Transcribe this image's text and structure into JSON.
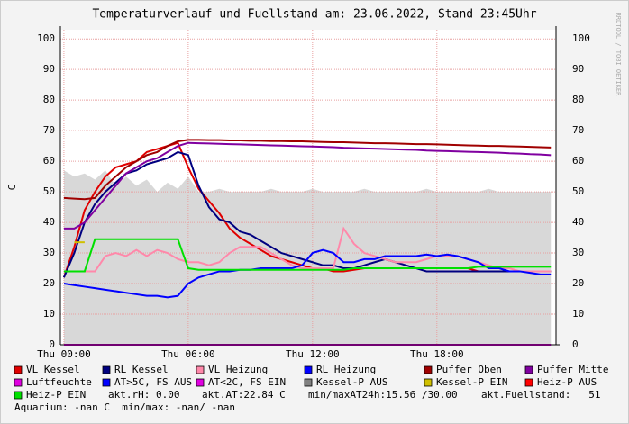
{
  "chart_data": {
    "type": "line",
    "title": "Temperaturverlauf und Fuellstand am: 23.06.2022, Stand 23:45Uhr",
    "y_label": "C",
    "watermark": "RRDTOOL / TOBI OETIKER",
    "xlim": [
      -0.17,
      23.75
    ],
    "xticks": [
      {
        "value": 0,
        "label": "Thu 00:00"
      },
      {
        "value": 6,
        "label": "Thu 06:00"
      },
      {
        "value": 12,
        "label": "Thu 12:00"
      },
      {
        "value": 18,
        "label": "Thu 18:00"
      }
    ],
    "ylim": [
      0,
      103
    ],
    "yticks": [
      0,
      10,
      20,
      30,
      40,
      50,
      60,
      70,
      80,
      90,
      100
    ],
    "grid": true,
    "x": [
      0,
      0.5,
      1,
      1.5,
      2,
      2.5,
      3,
      3.5,
      4,
      4.5,
      5,
      5.5,
      6,
      6.5,
      7,
      7.5,
      8,
      8.5,
      9,
      9.5,
      10,
      10.5,
      11,
      11.5,
      12,
      12.5,
      13,
      13.5,
      14,
      14.5,
      15,
      15.5,
      16,
      16.5,
      17,
      17.5,
      18,
      18.5,
      19,
      19.5,
      20,
      20.5,
      21,
      21.5,
      22,
      22.5,
      23,
      23.5
    ],
    "series": [
      {
        "name": "VL Kessel",
        "color": "#e00000",
        "values": [
          22,
          32,
          44,
          50,
          55,
          58,
          59,
          60,
          63,
          64,
          65,
          66,
          58,
          51,
          47,
          43,
          38,
          35,
          33,
          31,
          29,
          28,
          27,
          26,
          25,
          25,
          24,
          24,
          24.5,
          25,
          25,
          25,
          25,
          25,
          25,
          25,
          25,
          25,
          25,
          25,
          24,
          24,
          24,
          24,
          24,
          24,
          24,
          24
        ]
      },
      {
        "name": "RL Kessel",
        "color": "#000080",
        "values": [
          22,
          30,
          40,
          46,
          50,
          53,
          56,
          57,
          59,
          60,
          61,
          63,
          62,
          52,
          45,
          41,
          40,
          37,
          36,
          34,
          32,
          30,
          29,
          28,
          27,
          26,
          26,
          25,
          25,
          26,
          27,
          28,
          27,
          26,
          25,
          24,
          24,
          24,
          24,
          24,
          24,
          24,
          24,
          24,
          24,
          24,
          24,
          24
        ]
      },
      {
        "name": "VL Heizung",
        "color": "#ff88aa",
        "values": [
          24,
          24,
          24,
          24,
          29,
          30,
          29,
          31,
          29,
          31,
          30,
          28,
          27,
          27,
          26,
          27,
          30,
          32,
          32,
          32,
          30,
          28,
          26,
          25,
          25,
          25,
          25,
          38,
          33,
          30,
          29,
          28,
          27,
          27,
          27,
          28,
          29,
          29,
          29,
          28,
          27,
          26,
          25,
          25,
          24,
          24,
          24,
          24
        ]
      },
      {
        "name": "RL Heizung",
        "color": "#0000ff",
        "values": [
          20,
          19.5,
          19,
          18.5,
          18,
          17.5,
          17,
          16.5,
          16,
          16,
          15.5,
          16,
          20,
          22,
          23,
          24,
          24,
          24.5,
          24.5,
          25,
          25,
          25,
          25,
          26,
          30,
          31,
          30,
          27,
          27,
          28,
          28,
          29,
          29,
          29,
          29,
          29.5,
          29,
          29.5,
          29,
          28,
          27,
          25,
          25,
          24,
          24,
          23.5,
          23,
          23
        ]
      },
      {
        "name": "Puffer Oben",
        "color": "#a00000",
        "values": [
          48,
          47.8,
          47.6,
          48,
          52,
          55,
          58,
          60,
          62,
          63,
          65,
          66.5,
          67,
          67,
          66.9,
          66.9,
          66.8,
          66.8,
          66.7,
          66.7,
          66.6,
          66.6,
          66.5,
          66.5,
          66.4,
          66.3,
          66.2,
          66.2,
          66.1,
          66,
          65.9,
          65.9,
          65.8,
          65.7,
          65.6,
          65.6,
          65.5,
          65.4,
          65.3,
          65.2,
          65.1,
          65,
          65,
          64.9,
          64.8,
          64.7,
          64.6,
          64.5
        ]
      },
      {
        "name": "Puffer Mitte",
        "color": "#8000a0",
        "values": [
          38,
          38,
          40,
          44,
          48,
          52,
          56,
          58,
          60,
          61,
          63,
          65,
          66,
          65.9,
          65.8,
          65.7,
          65.6,
          65.5,
          65.4,
          65.3,
          65.2,
          65.1,
          65,
          64.9,
          64.8,
          64.7,
          64.6,
          64.4,
          64.3,
          64.2,
          64.1,
          64,
          63.9,
          63.8,
          63.7,
          63.5,
          63.4,
          63.3,
          63.2,
          63.1,
          63,
          62.9,
          62.8,
          62.6,
          62.5,
          62.3,
          62.2,
          62
        ]
      },
      {
        "name": "Luftfeuchte",
        "color": "#e000e0",
        "values": [
          0,
          0,
          0,
          0,
          0,
          0,
          0,
          0,
          0,
          0,
          0,
          0,
          0,
          0,
          0,
          0,
          0,
          0,
          0,
          0,
          0,
          0,
          0,
          0,
          0,
          0,
          0,
          0,
          0,
          0,
          0,
          0,
          0,
          0,
          0,
          0,
          0,
          0,
          0,
          0,
          0,
          0,
          0,
          0,
          0,
          0,
          0,
          0
        ]
      },
      {
        "name": "AT>5C, FS AUS",
        "color": "#0000ff",
        "values": [
          null,
          null,
          null,
          null,
          null,
          null,
          null,
          null,
          null,
          null,
          null,
          null,
          null,
          null,
          null,
          null,
          null,
          null,
          null,
          null,
          null,
          null,
          null,
          null,
          null,
          null,
          null,
          null,
          null,
          null,
          null,
          null,
          null,
          null,
          null,
          null,
          null,
          null,
          null,
          null,
          null,
          null,
          null,
          null,
          null,
          null,
          null,
          null
        ]
      },
      {
        "name": "AT<2C, FS EIN",
        "color": "#e000e0",
        "values": [
          null,
          null,
          null,
          null,
          null,
          null,
          null,
          null,
          null,
          null,
          null,
          null,
          null,
          null,
          null,
          null,
          null,
          null,
          null,
          null,
          null,
          null,
          null,
          null,
          null,
          null,
          null,
          null,
          null,
          null,
          null,
          null,
          null,
          null,
          null,
          null,
          null,
          null,
          null,
          null,
          null,
          null,
          null,
          null,
          null,
          null,
          null,
          null
        ]
      },
      {
        "name": "Kessel-P AUS",
        "color": "#808080",
        "style": "area",
        "area_color": "#d8d8d8",
        "values": [
          57,
          55,
          56,
          54,
          57,
          52,
          55,
          52,
          54,
          50,
          53,
          51,
          55,
          50,
          50,
          51,
          50,
          50,
          50,
          50,
          51,
          50,
          50,
          50,
          51,
          50,
          50,
          50,
          50,
          51,
          50,
          50,
          50,
          50,
          50,
          51,
          50,
          50,
          50,
          50,
          50,
          51,
          50,
          50,
          50,
          50,
          50,
          50
        ]
      },
      {
        "name": "Kessel-P EIN",
        "color": "#d0c000",
        "values": [
          null,
          33.5,
          33.5,
          null,
          null,
          null,
          null,
          null,
          null,
          null,
          null,
          null,
          null,
          null,
          null,
          null,
          null,
          null,
          null,
          null,
          null,
          null,
          null,
          null,
          null,
          null,
          null,
          null,
          null,
          null,
          null,
          null,
          null,
          null,
          null,
          null,
          null,
          null,
          null,
          null,
          null,
          null,
          null,
          null,
          null,
          null,
          null,
          null
        ]
      },
      {
        "name": "Heiz-P AUS",
        "color": "#ff0000",
        "values": [
          null,
          null,
          null,
          null,
          null,
          null,
          null,
          null,
          null,
          null,
          null,
          null,
          null,
          null,
          null,
          null,
          null,
          null,
          null,
          null,
          null,
          null,
          null,
          null,
          null,
          null,
          null,
          null,
          null,
          null,
          null,
          null,
          null,
          null,
          null,
          null,
          null,
          null,
          null,
          null,
          null,
          null,
          null,
          null,
          null,
          null,
          null,
          null
        ]
      },
      {
        "name": "Heiz-P EIN",
        "color": "#00e000",
        "values": [
          24,
          24,
          24,
          34.5,
          34.5,
          34.5,
          34.5,
          34.5,
          34.5,
          34.5,
          34.5,
          34.5,
          25,
          24.5,
          24.5,
          24.5,
          24.5,
          24.5,
          24.5,
          24.5,
          24.5,
          24.5,
          24.5,
          24.5,
          24.5,
          24.5,
          24.5,
          24.5,
          25,
          25,
          25,
          25,
          25,
          25,
          25,
          25,
          25,
          25,
          25,
          25,
          25.5,
          25.5,
          25.5,
          25.5,
          25.5,
          25.5,
          25.5,
          25.5
        ]
      }
    ],
    "info": [
      "akt.rH: 0.00",
      "akt.AT:22.84 C",
      "min/maxAT24h:15.56 /30.00",
      "akt.Fuellstand:   51",
      "Aquarium: -nan C  min/max: -nan/ -nan"
    ]
  }
}
